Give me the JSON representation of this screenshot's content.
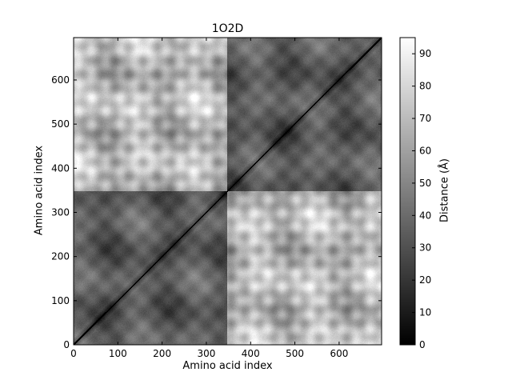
{
  "chart_data": {
    "type": "heatmap",
    "title": "1O2D",
    "xlabel": "Amino acid index",
    "ylabel": "Amino acid index",
    "xlim": [
      0,
      696
    ],
    "ylim": [
      0,
      696
    ],
    "xticks": [
      0,
      100,
      200,
      300,
      400,
      500,
      600
    ],
    "yticks": [
      0,
      100,
      200,
      300,
      400,
      500,
      600
    ],
    "domain_boundary": 348,
    "colorbar": {
      "label": "Distance (Å)",
      "range": [
        0,
        95
      ],
      "ticks": [
        0,
        10,
        20,
        30,
        40,
        50,
        60,
        70,
        80,
        90
      ],
      "colormap": "gray"
    },
    "blocks": [
      {
        "region": "chain A vs chain A (0-348 × 0-348)",
        "typical_distance": 25
      },
      {
        "region": "chain B vs chain B (348-696 × 348-696)",
        "typical_distance": 25
      },
      {
        "region": "chain A vs chain B (off-diagonal)",
        "typical_distance": 70
      }
    ],
    "diagonal_value": 0
  }
}
